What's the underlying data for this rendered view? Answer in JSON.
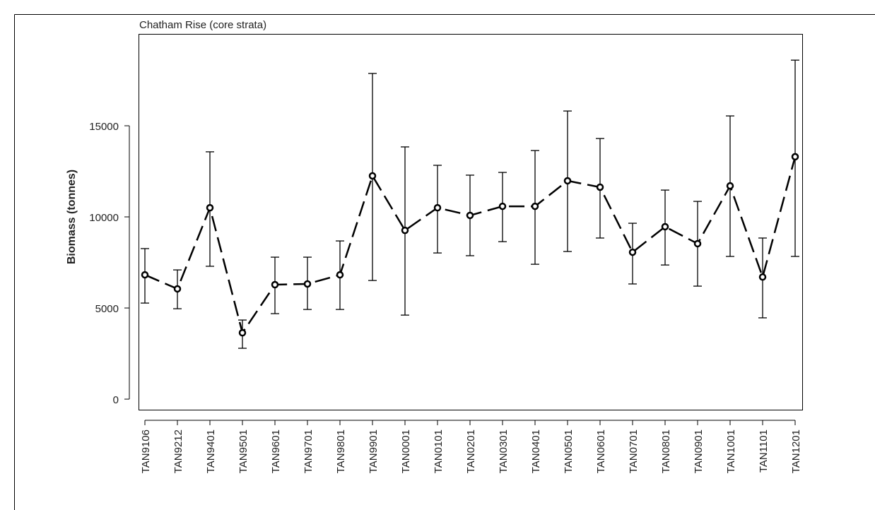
{
  "chart_data": {
    "type": "line",
    "title": "Chatham Rise (core strata)",
    "y_label": "Biomass (tonnes)",
    "categories": [
      "TAN9106",
      "TAN9212",
      "TAN9401",
      "TAN9501",
      "TAN9601",
      "TAN9701",
      "TAN9801",
      "TAN9901",
      "TAN0001",
      "TAN0101",
      "TAN0201",
      "TAN0301",
      "TAN0401",
      "TAN0501",
      "TAN0601",
      "TAN0701",
      "TAN0801",
      "TAN0901",
      "TAN1001",
      "TAN1101",
      "TAN1201"
    ],
    "values": [
      6820,
      6050,
      10500,
      3640,
      6280,
      6320,
      6820,
      12250,
      9260,
      10500,
      10080,
      10580,
      10580,
      11980,
      11630,
      8060,
      9460,
      8530,
      11700,
      6700,
      13300
    ],
    "lower": [
      5270,
      4960,
      7290,
      2790,
      4690,
      4920,
      4920,
      6510,
      4610,
      8020,
      7870,
      8640,
      7400,
      8100,
      8840,
      6320,
      7360,
      6200,
      7830,
      4460,
      7830
    ],
    "upper": [
      8260,
      7090,
      13570,
      4340,
      7790,
      7790,
      8680,
      17870,
      13840,
      12830,
      12290,
      12440,
      13640,
      15810,
      14300,
      9650,
      11470,
      10850,
      15540,
      8840,
      18600
    ],
    "color": "#000000",
    "ylim": [
      -580,
      20040
    ],
    "yticks": [
      0,
      5000,
      10000,
      15000
    ]
  }
}
